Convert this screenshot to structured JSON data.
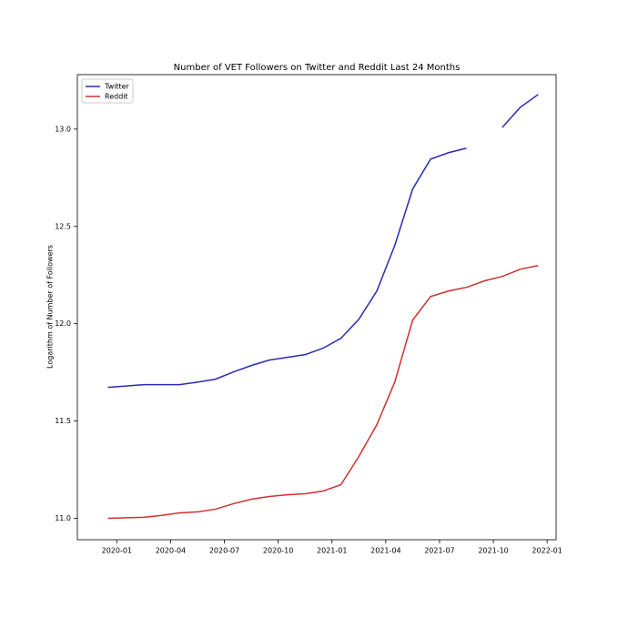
{
  "chart_data": {
    "type": "line",
    "title": "Number of VET Followers on Twitter and Reddit Last 24 Months",
    "y_label": "Logarithm of Number of Followers",
    "x": [
      "2019-12",
      "2020-01",
      "2020-02",
      "2020-03",
      "2020-04",
      "2020-05",
      "2020-06",
      "2020-07",
      "2020-08",
      "2020-09",
      "2020-10",
      "2020-11",
      "2020-12",
      "2021-01",
      "2021-02",
      "2021-03",
      "2021-04",
      "2021-05",
      "2021-06",
      "2021-07",
      "2021-08",
      "2021-09",
      "2021-10",
      "2021-11",
      "2021-12"
    ],
    "series": [
      {
        "name": "Twitter",
        "color": "#2a2ab4",
        "values": [
          11.673,
          11.68,
          11.687,
          11.687,
          11.687,
          11.7,
          11.715,
          11.752,
          11.785,
          11.813,
          11.827,
          11.841,
          11.874,
          11.925,
          12.023,
          12.168,
          12.402,
          12.692,
          12.846,
          12.879,
          12.902,
          null,
          13.009,
          13.112,
          13.178
        ]
      },
      {
        "name": "Reddit",
        "color": "#d03030",
        "values": [
          11.0,
          11.003,
          11.005,
          11.015,
          11.028,
          11.033,
          11.047,
          11.075,
          11.098,
          11.112,
          11.121,
          11.126,
          11.14,
          11.173,
          11.318,
          11.481,
          11.7,
          12.019,
          12.14,
          12.168,
          12.187,
          12.22,
          12.243,
          12.28,
          12.299
        ]
      }
    ],
    "ylim": [
      10.89,
      13.28
    ],
    "yticks": [
      {
        "value": 11,
        "label": "11.0"
      },
      11.5,
      {
        "value": 12,
        "label": "12.0"
      },
      12.5,
      {
        "value": 13,
        "label": "13.0"
      }
    ],
    "xticks": [
      "2020-01",
      "2020-04",
      "2020-07",
      "2020-10",
      "2021-01",
      "2021-04",
      "2021-07",
      "2021-10",
      "2022-01"
    ],
    "legend": "upper left"
  }
}
